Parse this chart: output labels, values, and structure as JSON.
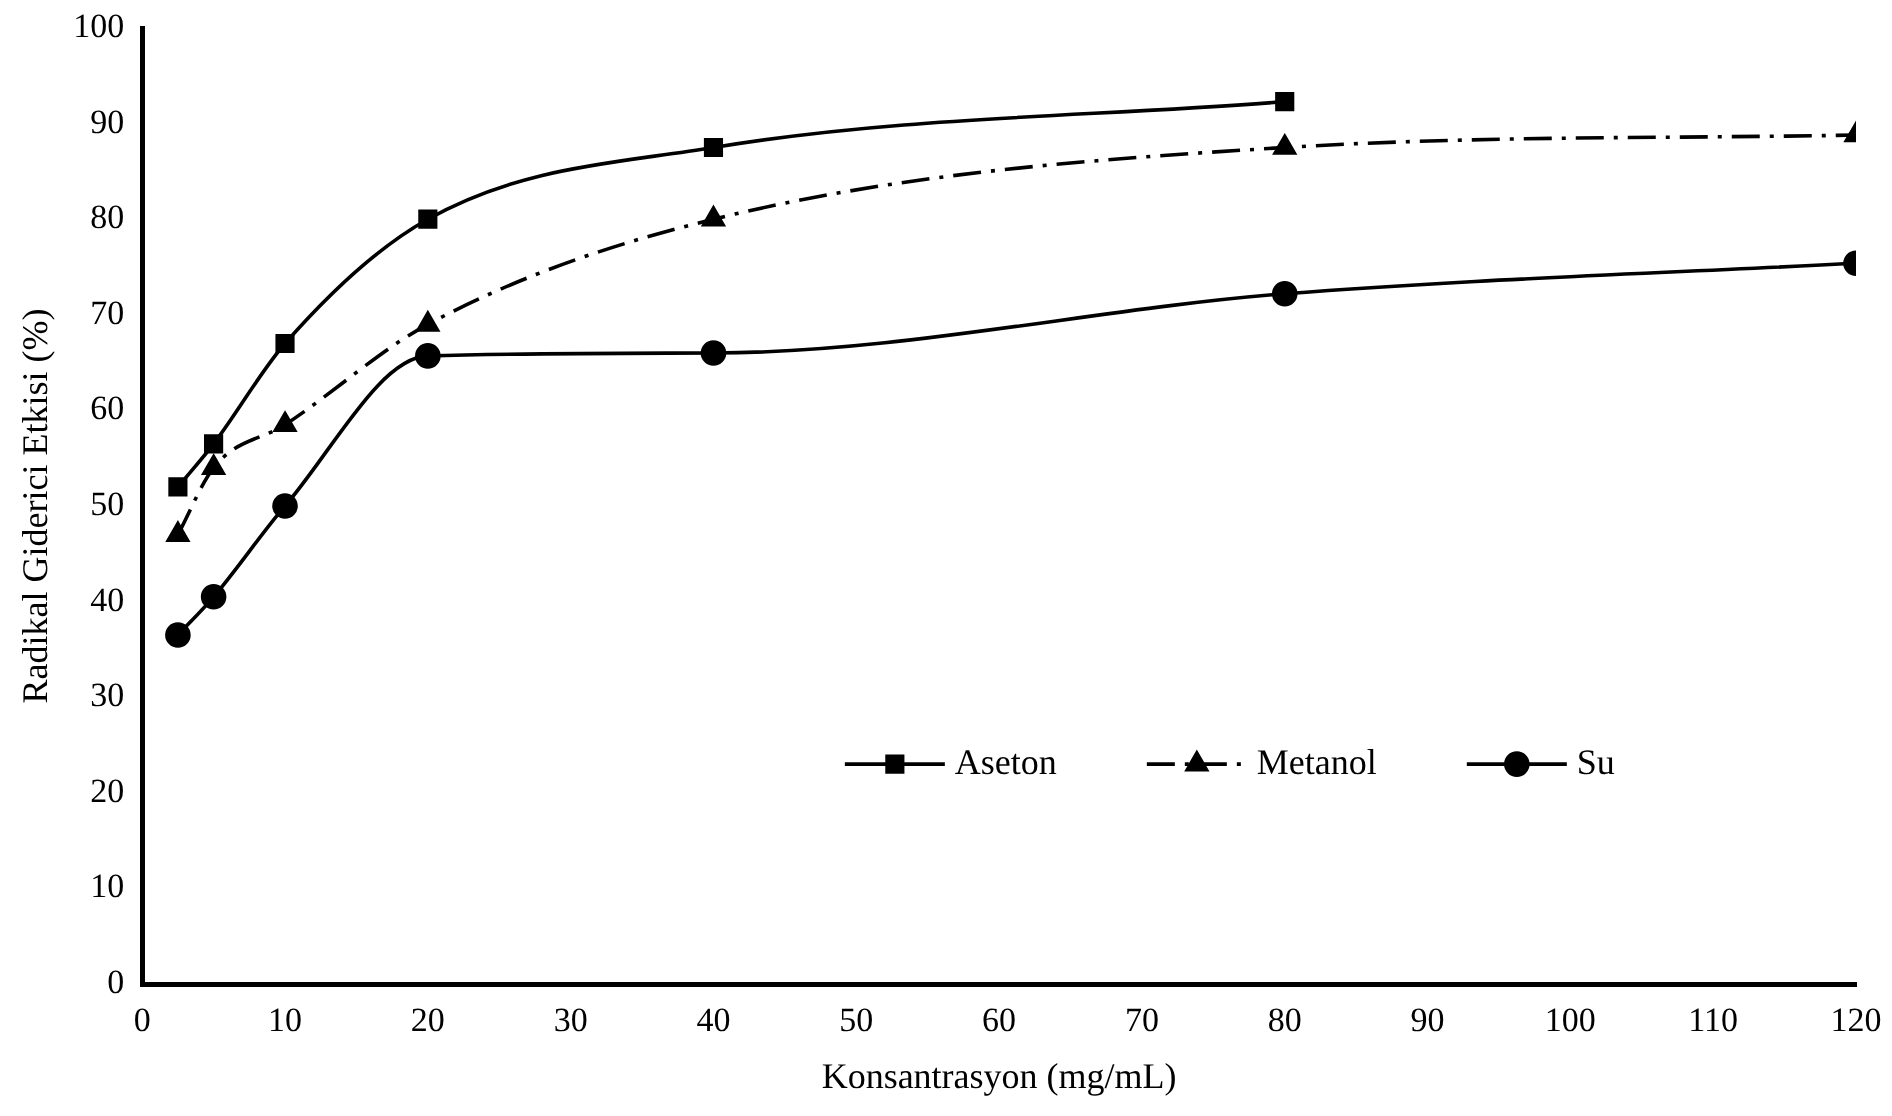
{
  "chart_data": {
    "type": "line",
    "xlabel": "Konsantrasyon (mg/mL)",
    "ylabel": "Radikal Giderici Etkisi (%)",
    "xlim": [
      0,
      120
    ],
    "xticks": [
      0,
      10,
      20,
      30,
      40,
      50,
      60,
      70,
      80,
      90,
      100,
      110,
      120
    ],
    "ylim": [
      0,
      100
    ],
    "yticks": [
      0,
      10,
      20,
      30,
      40,
      50,
      60,
      70,
      80,
      90,
      100
    ],
    "grid": false,
    "legend": "right",
    "series": [
      {
        "name": "Aseton",
        "color": "#000000",
        "marker": "square",
        "line_style": "solid",
        "x": [
          2.5,
          5,
          10,
          20,
          40,
          80
        ],
        "values": [
          52,
          56.5,
          67,
          80,
          87.5,
          92.3
        ]
      },
      {
        "name": "Metanol",
        "color": "#000000",
        "marker": "triangle",
        "line_style": "dashed",
        "x": [
          2.5,
          5,
          10,
          20,
          40,
          80,
          120
        ],
        "values": [
          47,
          54,
          58.5,
          69,
          80,
          87.5,
          88.8
        ]
      },
      {
        "name": "Su",
        "color": "#000000",
        "marker": "circle",
        "line_style": "solid",
        "x": [
          2.5,
          5,
          10,
          20,
          40,
          80,
          120
        ],
        "values": [
          36.5,
          40.5,
          50,
          65.7,
          66,
          72.2,
          75.4
        ]
      }
    ]
  }
}
